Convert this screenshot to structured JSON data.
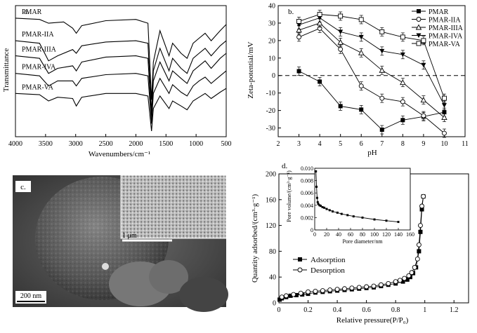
{
  "chart_data": [
    {
      "panel": "a.",
      "type": "line",
      "xlabel": "Wavenumbers/cm⁻¹",
      "ylabel": "Transmittance",
      "xlim": [
        4000,
        500
      ],
      "xticks": [
        4000,
        3500,
        3000,
        2500,
        2000,
        1500,
        1000,
        500
      ],
      "series": [
        {
          "name": "PMAR",
          "x": [
            4000,
            3600,
            3450,
            3200,
            3050,
            2990,
            2900,
            2500,
            2000,
            1800,
            1740,
            1710,
            1600,
            1450,
            1390,
            1250,
            1150,
            1050,
            950,
            850,
            750,
            600,
            500
          ],
          "y": [
            0.9,
            0.89,
            0.86,
            0.87,
            0.82,
            0.78,
            0.84,
            0.88,
            0.89,
            0.86,
            0.25,
            0.55,
            0.8,
            0.6,
            0.7,
            0.62,
            0.58,
            0.7,
            0.74,
            0.78,
            0.72,
            0.8,
            0.85
          ]
        },
        {
          "name": "PMAR-IIA",
          "x": [
            4000,
            3600,
            3450,
            3300,
            3050,
            2990,
            2900,
            2500,
            2000,
            1800,
            1740,
            1710,
            1600,
            1450,
            1390,
            1250,
            1150,
            1050,
            950,
            850,
            750,
            600,
            500
          ],
          "y": [
            0.72,
            0.7,
            0.56,
            0.6,
            0.65,
            0.62,
            0.68,
            0.71,
            0.72,
            0.7,
            0.15,
            0.48,
            0.66,
            0.48,
            0.58,
            0.5,
            0.46,
            0.58,
            0.62,
            0.66,
            0.6,
            0.68,
            0.72
          ]
        },
        {
          "name": "PMAR-IIIA",
          "x": [
            4000,
            3600,
            3450,
            3300,
            3050,
            2990,
            2900,
            2500,
            2000,
            1800,
            1740,
            1710,
            1600,
            1450,
            1390,
            1250,
            1150,
            1050,
            950,
            850,
            750,
            600,
            500
          ],
          "y": [
            0.6,
            0.58,
            0.46,
            0.5,
            0.52,
            0.48,
            0.55,
            0.59,
            0.6,
            0.58,
            0.1,
            0.4,
            0.55,
            0.4,
            0.48,
            0.42,
            0.38,
            0.48,
            0.52,
            0.56,
            0.5,
            0.58,
            0.62
          ]
        },
        {
          "name": "PMAR-IVA",
          "x": [
            4000,
            3600,
            3450,
            3300,
            3050,
            2990,
            2900,
            2500,
            2000,
            1800,
            1740,
            1710,
            1600,
            1450,
            1390,
            1250,
            1150,
            1050,
            950,
            850,
            750,
            600,
            500
          ],
          "y": [
            0.46,
            0.44,
            0.36,
            0.4,
            0.4,
            0.36,
            0.42,
            0.45,
            0.46,
            0.44,
            0.06,
            0.3,
            0.42,
            0.3,
            0.37,
            0.31,
            0.28,
            0.36,
            0.4,
            0.43,
            0.38,
            0.44,
            0.48
          ]
        },
        {
          "name": "PMAR-VA",
          "x": [
            4000,
            3600,
            3450,
            3300,
            3050,
            2990,
            2900,
            2500,
            2000,
            1800,
            1740,
            1710,
            1600,
            1450,
            1390,
            1250,
            1150,
            1050,
            950,
            850,
            750,
            600,
            500
          ],
          "y": [
            0.3,
            0.29,
            0.24,
            0.27,
            0.26,
            0.2,
            0.27,
            0.3,
            0.3,
            0.28,
            0.0,
            0.18,
            0.28,
            0.18,
            0.24,
            0.2,
            0.17,
            0.24,
            0.27,
            0.3,
            0.26,
            0.31,
            0.34
          ]
        }
      ]
    },
    {
      "panel": "b.",
      "type": "line",
      "xlabel": "pH",
      "ylabel": "Zeta-potential/mV",
      "xlim": [
        2,
        11
      ],
      "ylim": [
        -35,
        40
      ],
      "xticks": [
        2,
        3,
        4,
        5,
        6,
        7,
        8,
        9,
        10,
        11
      ],
      "yticks": [
        -30,
        -20,
        -10,
        0,
        10,
        20,
        30,
        40
      ],
      "legend": "top-right",
      "series": [
        {
          "name": "PMAR",
          "marker": "filled-square",
          "x": [
            3,
            4,
            5,
            6,
            7,
            8,
            9,
            10
          ],
          "y": [
            2.5,
            -3.5,
            -17.5,
            -19.5,
            -31,
            -25.5,
            -23.5,
            -21
          ]
        },
        {
          "name": "PMAR-IIA",
          "marker": "open-circle",
          "x": [
            3,
            4,
            5,
            6,
            7,
            8,
            9,
            10
          ],
          "y": [
            22,
            27,
            15,
            -6,
            -13,
            -15,
            -23,
            -33
          ]
        },
        {
          "name": "PMAR-IIIA",
          "marker": "open-triangle",
          "x": [
            3,
            4,
            5,
            6,
            7,
            8,
            9,
            10
          ],
          "y": [
            26,
            30,
            19,
            13,
            3,
            -4,
            -14,
            -24
          ]
        },
        {
          "name": "PMAR-IVA",
          "marker": "filled-triangle-down",
          "x": [
            3,
            4,
            5,
            6,
            7,
            8,
            9,
            10
          ],
          "y": [
            29,
            33,
            25,
            22,
            14,
            12,
            6,
            -17
          ]
        },
        {
          "name": "PMAR-VA",
          "marker": "open-square",
          "x": [
            3,
            4,
            5,
            6,
            7,
            8,
            9,
            10
          ],
          "y": [
            31,
            35,
            34,
            32,
            25,
            22,
            20,
            -13
          ]
        }
      ]
    },
    {
      "panel": "c.",
      "type": "image",
      "scale_bar": "200 nm",
      "inset_scale_bar": "1 μm"
    },
    {
      "panel": "d.",
      "type": "line",
      "xlabel": "Relative pressure(P/P₀)",
      "ylabel": "Quantity adsorbed/(cm³·g⁻¹)",
      "xlim": [
        0,
        1.3
      ],
      "ylim": [
        0,
        200
      ],
      "xticks": [
        0,
        0.2,
        0.4,
        0.6,
        0.8,
        1.0,
        1.2
      ],
      "yticks": [
        0,
        40,
        80,
        120,
        160,
        200
      ],
      "legend": "lower-left",
      "series": [
        {
          "name": "Adsorption",
          "marker": "filled-square",
          "x": [
            0.005,
            0.02,
            0.05,
            0.08,
            0.12,
            0.16,
            0.2,
            0.25,
            0.3,
            0.35,
            0.4,
            0.45,
            0.5,
            0.55,
            0.6,
            0.65,
            0.7,
            0.75,
            0.8,
            0.85,
            0.88,
            0.9,
            0.92,
            0.94,
            0.96,
            0.97,
            0.98,
            0.99
          ],
          "y": [
            5,
            7,
            9,
            11,
            12,
            13,
            14,
            16,
            17,
            18,
            19,
            20,
            21,
            22,
            23,
            24,
            26,
            28,
            30,
            33,
            36,
            40,
            46,
            55,
            80,
            110,
            145,
            165
          ]
        },
        {
          "name": "Desorption",
          "marker": "open-circle",
          "x": [
            0.99,
            0.98,
            0.97,
            0.96,
            0.95,
            0.93,
            0.91,
            0.89,
            0.86,
            0.83,
            0.8,
            0.75,
            0.7,
            0.65,
            0.6,
            0.55,
            0.5,
            0.45,
            0.4,
            0.35,
            0.3,
            0.25,
            0.2,
            0.15,
            0.1,
            0.05,
            0.02
          ],
          "y": [
            165,
            150,
            120,
            90,
            68,
            55,
            47,
            42,
            38,
            35,
            33,
            30,
            28,
            26,
            25,
            24,
            23,
            22,
            21,
            20,
            19,
            18,
            17,
            15,
            13,
            11,
            9
          ]
        }
      ],
      "inset": {
        "type": "line",
        "xlabel": "Pore diameter/nm",
        "ylabel": "Pore volume/(cm³·g⁻¹)",
        "xlim": [
          0,
          160
        ],
        "ylim": [
          0,
          0.01
        ],
        "xticks": [
          0,
          20,
          40,
          60,
          80,
          100,
          120,
          140,
          160
        ],
        "yticks": [
          0,
          0.002,
          0.004,
          0.006,
          0.008,
          0.01
        ],
        "yticklabels": [
          "0",
          "0.002",
          "0.004",
          "0.006",
          "0.008",
          "0.010"
        ],
        "x": [
          2,
          3,
          4,
          5,
          6,
          8,
          10,
          13,
          16,
          20,
          25,
          30,
          38,
          45,
          55,
          65,
          80,
          100,
          120,
          140
        ],
        "y": [
          0.0095,
          0.007,
          0.0052,
          0.0045,
          0.0042,
          0.004,
          0.0039,
          0.0037,
          0.0036,
          0.0034,
          0.0032,
          0.003,
          0.0028,
          0.0026,
          0.0024,
          0.0022,
          0.002,
          0.0017,
          0.0015,
          0.0013
        ]
      }
    }
  ]
}
